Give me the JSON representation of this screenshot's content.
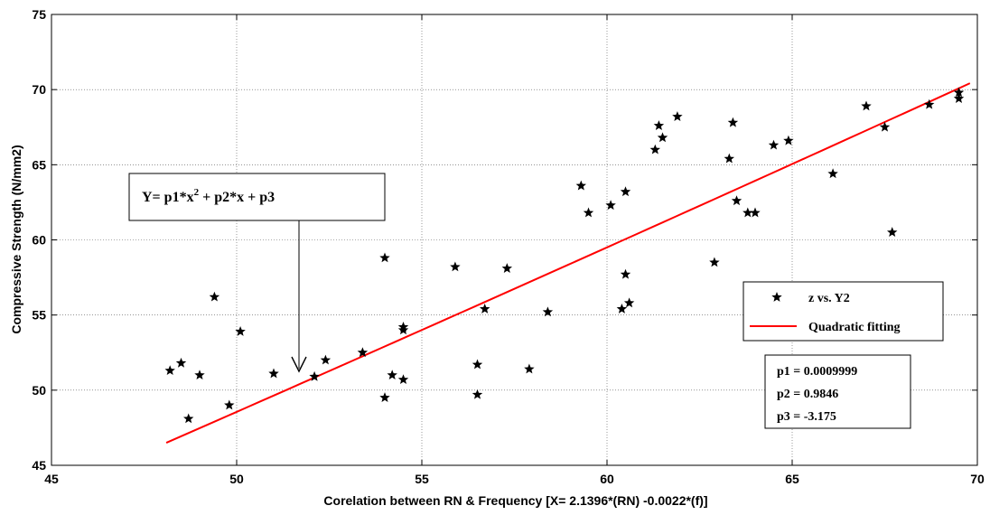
{
  "chart_data": {
    "type": "scatter",
    "xlabel": "Corelation between RN & Frequency [X=  2.1396*(RN) -0.0022*(f)]",
    "ylabel": "Compressive Strength (N/mm2)",
    "xlim": [
      45,
      70
    ],
    "ylim": [
      45,
      75
    ],
    "xticks": [
      45,
      50,
      55,
      60,
      65,
      70
    ],
    "yticks": [
      45,
      50,
      55,
      60,
      65,
      70,
      75
    ],
    "grid": true,
    "series": [
      {
        "name": "z vs. Y2",
        "kind": "scatter",
        "marker": "star",
        "color": "#000000",
        "points": [
          [
            48.2,
            51.3
          ],
          [
            48.5,
            51.8
          ],
          [
            48.7,
            48.1
          ],
          [
            49.0,
            51.0
          ],
          [
            49.4,
            56.2
          ],
          [
            49.8,
            49.0
          ],
          [
            50.1,
            53.9
          ],
          [
            51.0,
            51.1
          ],
          [
            52.1,
            50.9
          ],
          [
            52.4,
            52.0
          ],
          [
            53.4,
            52.5
          ],
          [
            54.0,
            58.8
          ],
          [
            54.0,
            49.5
          ],
          [
            54.2,
            51.0
          ],
          [
            54.5,
            50.7
          ],
          [
            54.5,
            54.0
          ],
          [
            54.5,
            54.2
          ],
          [
            55.9,
            58.2
          ],
          [
            56.5,
            49.7
          ],
          [
            56.5,
            51.7
          ],
          [
            56.7,
            55.4
          ],
          [
            57.3,
            58.1
          ],
          [
            57.9,
            51.4
          ],
          [
            58.4,
            55.2
          ],
          [
            59.3,
            63.6
          ],
          [
            59.5,
            61.8
          ],
          [
            60.1,
            62.3
          ],
          [
            60.4,
            55.4
          ],
          [
            60.5,
            57.7
          ],
          [
            60.5,
            63.2
          ],
          [
            60.6,
            55.8
          ],
          [
            61.3,
            66.0
          ],
          [
            61.4,
            67.6
          ],
          [
            61.5,
            66.8
          ],
          [
            61.9,
            68.2
          ],
          [
            62.9,
            58.5
          ],
          [
            63.3,
            65.4
          ],
          [
            63.4,
            67.8
          ],
          [
            63.5,
            62.6
          ],
          [
            63.8,
            61.8
          ],
          [
            64.0,
            61.8
          ],
          [
            64.5,
            66.3
          ],
          [
            64.9,
            66.6
          ],
          [
            66.1,
            64.4
          ],
          [
            67.0,
            68.9
          ],
          [
            67.5,
            67.5
          ],
          [
            67.7,
            60.5
          ],
          [
            68.7,
            69.0
          ],
          [
            69.5,
            69.4
          ],
          [
            69.5,
            69.8
          ]
        ]
      },
      {
        "name": "Quadratic fitting",
        "kind": "line",
        "color": "#ff0000",
        "x_range": [
          48.1,
          69.8
        ]
      }
    ],
    "fit_coefficients": {
      "p1": 0.0009999,
      "p2": 0.9846,
      "p3": -3.175
    },
    "legend_position": "right",
    "annotations": {
      "equation_prefix": "Y= p1*x",
      "equation_power": "2",
      "equation_suffix": " + p2*x + p3",
      "p1": "p1 = 0.0009999",
      "p2": "p2 = 0.9846",
      "p3": "p3 = -3.175"
    }
  }
}
